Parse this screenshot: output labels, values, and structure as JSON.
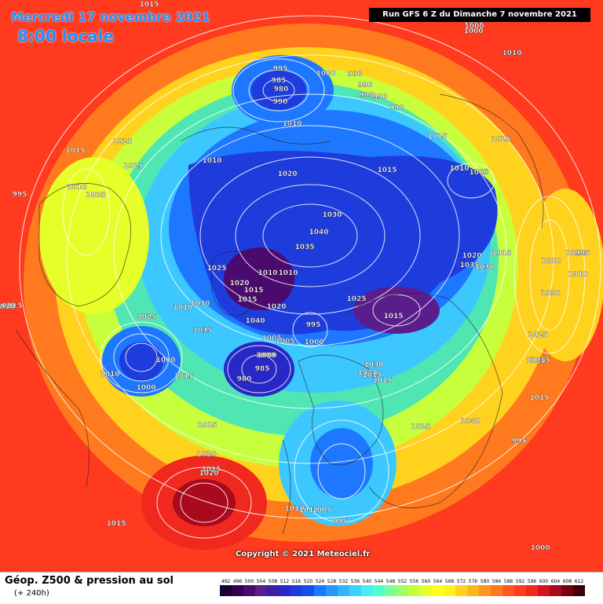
{
  "header": {
    "date": "Mercredi 17 novembre 2021",
    "time": "8:00 locale",
    "run": "Run GFS 6 Z du Dimanche 7 novembre 2021"
  },
  "copyright": "Copyright © 2021 Meteociel.fr",
  "legend": {
    "title": "Géop. Z500 & pression au sol",
    "subtitle": "(+ 240h)",
    "scale_labels": [
      "492",
      "496",
      "500",
      "504",
      "508",
      "512",
      "516",
      "520",
      "524",
      "528",
      "532",
      "536",
      "540",
      "544",
      "548",
      "552",
      "556",
      "560",
      "564",
      "568",
      "572",
      "576",
      "580",
      "584",
      "588",
      "592",
      "596",
      "600",
      "604",
      "608",
      "612"
    ],
    "scale_colors": [
      "#1a0033",
      "#330050",
      "#4b0a6e",
      "#5a1e8c",
      "#3c1ea0",
      "#2828c8",
      "#1e3cdc",
      "#1450f0",
      "#1e78ff",
      "#2896ff",
      "#32b4ff",
      "#3cd2ff",
      "#46f0f0",
      "#50ffc8",
      "#78ff96",
      "#a0ff64",
      "#c8ff3c",
      "#e6ff28",
      "#ffff1e",
      "#fff01e",
      "#ffd21e",
      "#ffb41e",
      "#ff961e",
      "#ff781e",
      "#ff5a1e",
      "#ff3c1e",
      "#f0281e",
      "#d2141e",
      "#aa0a1e",
      "#780014",
      "#3c000a"
    ]
  },
  "pressure_labels": [
    "1015",
    "1005",
    "1000",
    "1000",
    "995",
    "985",
    "980",
    "990",
    "1000",
    "1010",
    "1010",
    "990",
    "990",
    "995",
    "990",
    "990",
    "1010",
    "1025",
    "1015",
    "1015",
    "1025",
    "1010",
    "1010",
    "1025",
    "1005",
    "1000",
    "995",
    "1015",
    "1020",
    "1010",
    "1005",
    "1030",
    "1040",
    "1035",
    "1025",
    "1020",
    "1015",
    "1015",
    "1020",
    "1010",
    "1035",
    "1030",
    "1010",
    "1025",
    "1040",
    "1005",
    "1015",
    "1030",
    "1000",
    "985",
    "980",
    "1020",
    "1015",
    "1010",
    "995",
    "1000",
    "1025",
    "1015",
    "1005",
    "1000",
    "1000",
    "1030",
    "1035",
    "1030",
    "1025",
    "1020",
    "1025",
    "1015",
    "1030",
    "1010",
    "1010",
    "1015",
    "1000",
    "1010",
    "995",
    "995",
    "1025",
    "1015",
    "1040",
    "1015",
    "1015",
    "1015",
    "1030",
    "1015",
    "1015",
    "1010",
    "1010",
    "1005",
    "995",
    "1000",
    "1015",
    "1030",
    "1020",
    "1025",
    "1020"
  ]
}
